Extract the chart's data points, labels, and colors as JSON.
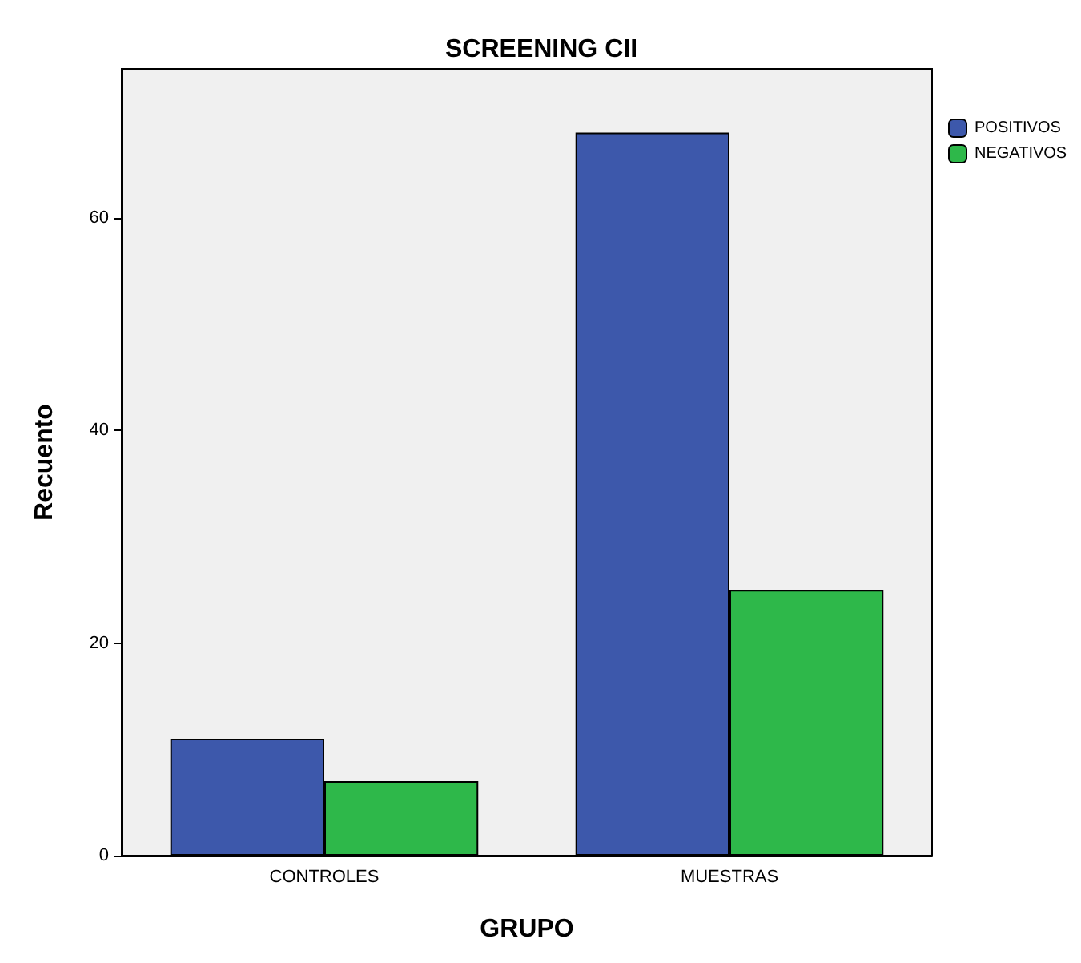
{
  "chart_data": {
    "type": "bar",
    "title": "SCREENING CII",
    "xlabel": "GRUPO",
    "ylabel": "Recuento",
    "categories": [
      "CONTROLES",
      "MUESTRAS"
    ],
    "series": [
      {
        "name": "POSITIVOS",
        "color": "#3d58ab",
        "values": [
          11,
          68
        ]
      },
      {
        "name": "NEGATIVOS",
        "color": "#2eb84a",
        "values": [
          7,
          25
        ]
      }
    ],
    "ylim": [
      0,
      74
    ],
    "yticks": [
      0,
      20,
      40,
      60
    ],
    "grid": false,
    "legend": "top right"
  }
}
